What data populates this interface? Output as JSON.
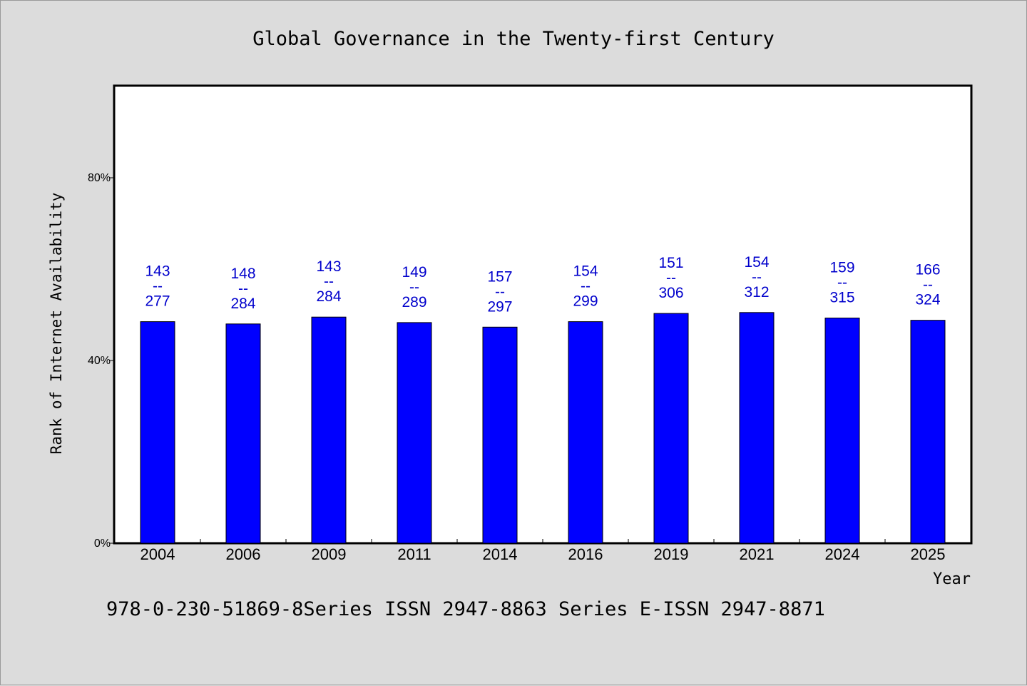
{
  "chart_data": {
    "type": "bar",
    "title": "Global Governance in the Twenty-first Century",
    "ylabel": "Rank of Internet Availability",
    "xlabel": "Year",
    "ylim": [
      0,
      100
    ],
    "yticks": [
      {
        "value": 0,
        "label": "0%"
      },
      {
        "value": 40,
        "label": "40%"
      },
      {
        "value": 80,
        "label": "80%"
      }
    ],
    "categories": [
      "2004",
      "2006",
      "2009",
      "2011",
      "2014",
      "2016",
      "2019",
      "2021",
      "2024",
      "2025"
    ],
    "values": [
      48.5,
      48.0,
      49.5,
      48.3,
      47.3,
      48.5,
      50.3,
      50.5,
      49.3,
      48.8
    ],
    "data_labels": [
      [
        "143",
        "--",
        "277"
      ],
      [
        "148",
        "--",
        "284"
      ],
      [
        "143",
        "--",
        "284"
      ],
      [
        "149",
        "--",
        "289"
      ],
      [
        "157",
        "--",
        "297"
      ],
      [
        "154",
        "--",
        "299"
      ],
      [
        "151",
        "--",
        "306"
      ],
      [
        "154",
        "--",
        "312"
      ],
      [
        "159",
        "--",
        "315"
      ],
      [
        "166",
        "--",
        "324"
      ]
    ],
    "bar_color": "#0000ff",
    "label_color": "#0000cc",
    "grid": false,
    "legend": "none"
  },
  "footer_text": "978-0-230-51869-8Series ISSN 2947-8863 Series E-ISSN 2947-8871"
}
